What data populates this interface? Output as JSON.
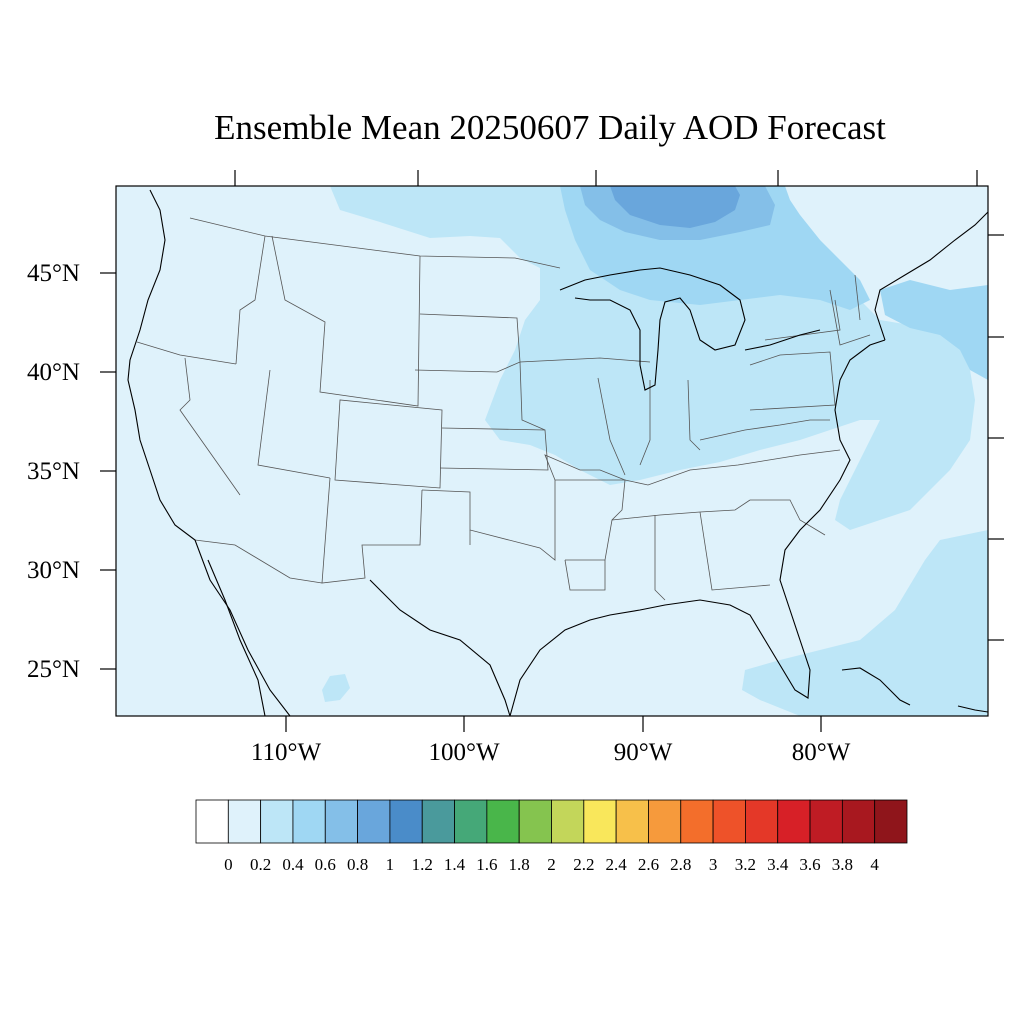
{
  "title": "Ensemble Mean 20250607 Daily AOD Forecast",
  "map": {
    "lat_labels": [
      "45°N",
      "40°N",
      "35°N",
      "30°N",
      "25°N"
    ],
    "lon_labels": [
      "110°W",
      "100°W",
      "90°W",
      "80°W"
    ]
  },
  "colorbar": {
    "labels": [
      "0",
      "0.2",
      "0.4",
      "0.6",
      "0.8",
      "1",
      "1.2",
      "1.4",
      "1.6",
      "1.8",
      "2",
      "2.2",
      "2.4",
      "2.6",
      "2.8",
      "3",
      "3.2",
      "3.4",
      "3.6",
      "3.8",
      "4"
    ],
    "colors": [
      "#ffffff",
      "#dff2fb",
      "#bde6f7",
      "#9fd7f3",
      "#84bfe8",
      "#69a6dc",
      "#4a8cc9",
      "#4a9a9c",
      "#45a878",
      "#49b64a",
      "#85c44f",
      "#c3d65a",
      "#f9e75b",
      "#f7c04a",
      "#f69a3c",
      "#f36e2b",
      "#ee5229",
      "#e43828",
      "#d72027",
      "#bf1c24",
      "#a8181f",
      "#8f151b"
    ]
  }
}
